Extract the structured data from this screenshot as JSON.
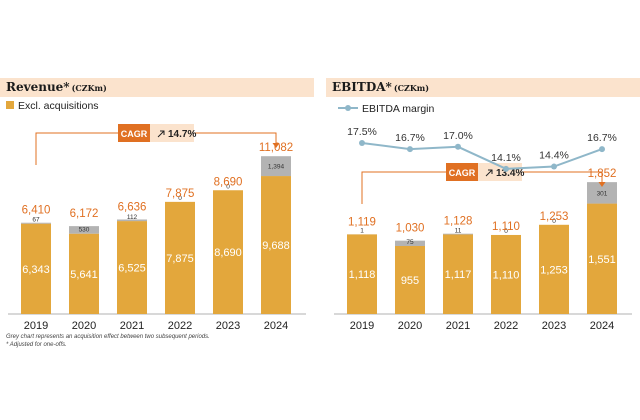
{
  "theme": {
    "bar_color": "#e3a73c",
    "acq_color": "#b3b3b3",
    "accent": "#e07022",
    "header_bg": "#fbe3cd",
    "margin_line": "#8fb7c9"
  },
  "footnotes": [
    "Grey chart represents an acquisition effect between two subsequent periods.",
    "* Adjusted for one-offs."
  ],
  "chart_data": [
    {
      "type": "bar",
      "stacked": true,
      "title": "Revenue*",
      "unit": "(CZKm)",
      "categories": [
        "2019",
        "2020",
        "2021",
        "2022",
        "2023",
        "2024"
      ],
      "series": [
        {
          "name": "Excl. acquisitions",
          "values": [
            6343,
            5641,
            6525,
            7875,
            8690,
            9688
          ]
        },
        {
          "name": "",
          "values": [
            67,
            530,
            112,
            0,
            0,
            1394
          ]
        }
      ],
      "totals": [
        6410,
        6172,
        6636,
        7875,
        8690,
        11082
      ],
      "ylim": [
        0,
        12500
      ],
      "legend": "top-left",
      "cagr": {
        "label": "CAGR",
        "value": "14.7%"
      }
    },
    {
      "type": "bar",
      "stacked": true,
      "title": "EBITDA*",
      "unit": "(CZKm)",
      "categories": [
        "2019",
        "2020",
        "2021",
        "2022",
        "2023",
        "2024"
      ],
      "series": [
        {
          "name": "",
          "values": [
            1118,
            955,
            1117,
            1110,
            1253,
            1551
          ]
        },
        {
          "name": "",
          "values": [
            1,
            75,
            11,
            0,
            0,
            301
          ]
        }
      ],
      "totals": [
        1119,
        1030,
        1128,
        1110,
        1253,
        1852
      ],
      "ylim": [
        0,
        2500
      ],
      "line_series": {
        "name": "EBITDA margin",
        "values": [
          17.5,
          16.7,
          17.0,
          14.1,
          14.4,
          16.7
        ],
        "labels": [
          "17.5%",
          "16.7%",
          "17.0%",
          "14.1%",
          "14.4%",
          "16.7%"
        ]
      },
      "cagr": {
        "label": "CAGR",
        "value": "13.4%"
      }
    }
  ]
}
